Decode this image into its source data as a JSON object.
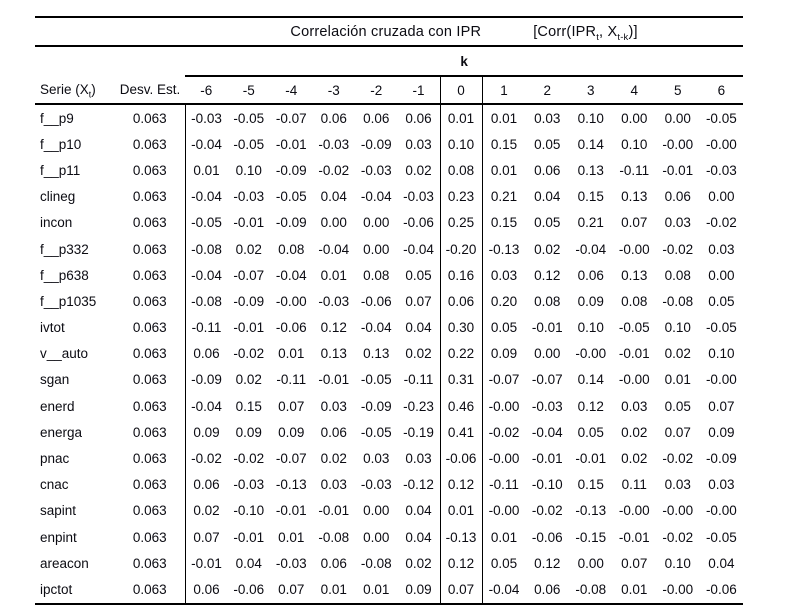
{
  "title": {
    "main": "Correlación cruzada con IPR",
    "formula": {
      "prefix": "[Corr(IPR",
      "sub1": "t",
      "mid": ", X",
      "sub2": "t-k",
      "suffix": ")]"
    }
  },
  "k_header": "k",
  "columns": {
    "serie": {
      "prefix": "Serie (X",
      "sub": "t",
      "suffix": ")"
    },
    "desv": "Desv. Est.",
    "lags": [
      "-6",
      "-5",
      "-4",
      "-3",
      "-2",
      "-1",
      "0",
      "1",
      "2",
      "3",
      "4",
      "5",
      "6"
    ]
  },
  "rows": [
    {
      "serie": "f__p9",
      "desv": "0.063",
      "values": [
        "-0.03",
        "-0.05",
        "-0.07",
        "0.06",
        "0.06",
        "0.06",
        "0.01",
        "0.01",
        "0.03",
        "0.10",
        "0.00",
        "0.00",
        "-0.05"
      ]
    },
    {
      "serie": "f__p10",
      "desv": "0.063",
      "values": [
        "-0.04",
        "-0.05",
        "-0.01",
        "-0.03",
        "-0.09",
        "0.03",
        "0.10",
        "0.15",
        "0.05",
        "0.14",
        "0.10",
        "-0.00",
        "-0.00"
      ]
    },
    {
      "serie": "f__p11",
      "desv": "0.063",
      "values": [
        "0.01",
        "0.10",
        "-0.09",
        "-0.02",
        "-0.03",
        "0.02",
        "0.08",
        "0.01",
        "0.06",
        "0.13",
        "-0.11",
        "-0.01",
        "-0.03"
      ]
    },
    {
      "serie": "clineg",
      "desv": "0.063",
      "values": [
        "-0.04",
        "-0.03",
        "-0.05",
        "0.04",
        "-0.04",
        "-0.03",
        "0.23",
        "0.21",
        "0.04",
        "0.15",
        "0.13",
        "0.06",
        "0.00"
      ]
    },
    {
      "serie": "incon",
      "desv": "0.063",
      "values": [
        "-0.05",
        "-0.01",
        "-0.09",
        "0.00",
        "0.00",
        "-0.06",
        "0.25",
        "0.15",
        "0.05",
        "0.21",
        "0.07",
        "0.03",
        "-0.02"
      ]
    },
    {
      "serie": "f__p332",
      "desv": "0.063",
      "values": [
        "-0.08",
        "0.02",
        "0.08",
        "-0.04",
        "0.00",
        "-0.04",
        "-0.20",
        "-0.13",
        "0.02",
        "-0.04",
        "-0.00",
        "-0.02",
        "0.03"
      ]
    },
    {
      "serie": "f__p638",
      "desv": "0.063",
      "values": [
        "-0.04",
        "-0.07",
        "-0.04",
        "0.01",
        "0.08",
        "0.05",
        "0.16",
        "0.03",
        "0.12",
        "0.06",
        "0.13",
        "0.08",
        "0.00"
      ]
    },
    {
      "serie": "f__p1035",
      "desv": "0.063",
      "values": [
        "-0.08",
        "-0.09",
        "-0.00",
        "-0.03",
        "-0.06",
        "0.07",
        "0.06",
        "0.20",
        "0.08",
        "0.09",
        "0.08",
        "-0.08",
        "0.05"
      ]
    },
    {
      "serie": "ivtot",
      "desv": "0.063",
      "values": [
        "-0.11",
        "-0.01",
        "-0.06",
        "0.12",
        "-0.04",
        "0.04",
        "0.30",
        "0.05",
        "-0.01",
        "0.10",
        "-0.05",
        "0.10",
        "-0.05"
      ]
    },
    {
      "serie": "v__auto",
      "desv": "0.063",
      "values": [
        "0.06",
        "-0.02",
        "0.01",
        "0.13",
        "0.13",
        "0.02",
        "0.22",
        "0.09",
        "0.00",
        "-0.00",
        "-0.01",
        "0.02",
        "0.10"
      ]
    },
    {
      "serie": "sgan",
      "desv": "0.063",
      "values": [
        "-0.09",
        "0.02",
        "-0.11",
        "-0.01",
        "-0.05",
        "-0.11",
        "0.31",
        "-0.07",
        "-0.07",
        "0.14",
        "-0.00",
        "0.01",
        "-0.00"
      ]
    },
    {
      "serie": "enerd",
      "desv": "0.063",
      "values": [
        "-0.04",
        "0.15",
        "0.07",
        "0.03",
        "-0.09",
        "-0.23",
        "0.46",
        "-0.00",
        "-0.03",
        "0.12",
        "0.03",
        "0.05",
        "0.07"
      ]
    },
    {
      "serie": "energa",
      "desv": "0.063",
      "values": [
        "0.09",
        "0.09",
        "0.09",
        "0.06",
        "-0.05",
        "-0.19",
        "0.41",
        "-0.02",
        "-0.04",
        "0.05",
        "0.02",
        "0.07",
        "0.09"
      ]
    },
    {
      "serie": "pnac",
      "desv": "0.063",
      "values": [
        "-0.02",
        "-0.02",
        "-0.07",
        "0.02",
        "0.03",
        "0.03",
        "-0.06",
        "-0.00",
        "-0.01",
        "-0.01",
        "0.02",
        "-0.02",
        "-0.09"
      ]
    },
    {
      "serie": "cnac",
      "desv": "0.063",
      "values": [
        "0.06",
        "-0.03",
        "-0.13",
        "0.03",
        "-0.03",
        "-0.12",
        "0.12",
        "-0.11",
        "-0.10",
        "0.15",
        "0.11",
        "0.03",
        "0.03"
      ]
    },
    {
      "serie": "sapint",
      "desv": "0.063",
      "values": [
        "0.02",
        "-0.10",
        "-0.01",
        "-0.01",
        "0.00",
        "0.04",
        "0.01",
        "-0.00",
        "-0.02",
        "-0.13",
        "-0.00",
        "-0.00",
        "-0.00"
      ]
    },
    {
      "serie": "enpint",
      "desv": "0.063",
      "values": [
        "0.07",
        "-0.01",
        "0.01",
        "-0.08",
        "0.00",
        "0.04",
        "-0.13",
        "0.01",
        "-0.06",
        "-0.15",
        "-0.01",
        "-0.02",
        "-0.05"
      ]
    },
    {
      "serie": "areacon",
      "desv": "0.063",
      "values": [
        "-0.01",
        "0.04",
        "-0.03",
        "0.06",
        "-0.08",
        "0.02",
        "0.12",
        "0.05",
        "0.12",
        "0.00",
        "0.07",
        "0.10",
        "0.04"
      ]
    },
    {
      "serie": "ipctot",
      "desv": "0.063",
      "values": [
        "0.06",
        "-0.06",
        "0.07",
        "0.01",
        "0.01",
        "0.09",
        "0.07",
        "-0.04",
        "0.06",
        "-0.08",
        "0.01",
        "-0.00",
        "-0.06"
      ]
    }
  ]
}
